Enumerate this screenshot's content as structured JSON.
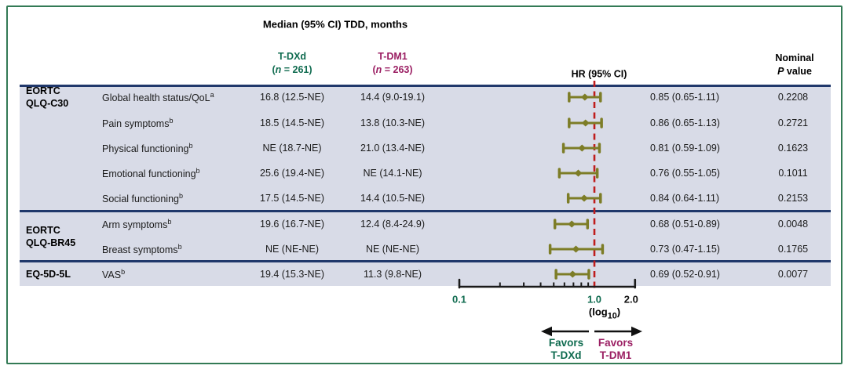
{
  "figure": {
    "title": "Median (95% CI) TDD, months",
    "col_tdxd": {
      "name": "T-DXd",
      "n_label": "(n = 261)"
    },
    "col_tdm1": {
      "name": "T-DM1",
      "n_label": "(n = 263)"
    },
    "col_hr": "HR (95% CI)",
    "col_p_line1": "Nominal",
    "col_p_line2": "P value"
  },
  "chart_data": {
    "type": "forest",
    "x_scale": "log10",
    "x_label": "(log10)",
    "reference_line": 1.0,
    "x_major_ticks": [
      {
        "value": 0.1,
        "label": "0.1",
        "color_key": "green"
      },
      {
        "value": 1.0,
        "label": "1.0",
        "color_key": "green"
      },
      {
        "value": 2.0,
        "label": "2.0",
        "color_key": "black"
      }
    ],
    "x_minor_ticks": [
      0.2,
      0.3,
      0.4,
      0.5,
      0.6,
      0.7,
      0.8,
      0.9
    ],
    "x_range": [
      0.1,
      2.0
    ],
    "groups": [
      {
        "lines": [
          "EORTC",
          "QLQ-C30"
        ],
        "row_start": 0,
        "row_end": 4
      },
      {
        "lines": [
          "EORTC",
          "QLQ-BR45"
        ],
        "row_start": 5,
        "row_end": 6
      },
      {
        "lines": [
          "EQ-5D-5L"
        ],
        "row_start": 7,
        "row_end": 7
      }
    ],
    "rows": [
      {
        "endpoint": "Global health status/QoL",
        "sup": "a",
        "tdxd": "16.8 (12.5-NE)",
        "tdm1": "14.4 (9.0-19.1)",
        "hr": 0.85,
        "ci_low": 0.65,
        "ci_high": 1.11,
        "hr_text": "0.85 (0.65-1.11)",
        "p_value": "0.2208"
      },
      {
        "endpoint": "Pain symptoms",
        "sup": "b",
        "tdxd": "18.5 (14.5-NE)",
        "tdm1": "13.8 (10.3-NE)",
        "hr": 0.86,
        "ci_low": 0.65,
        "ci_high": 1.13,
        "hr_text": "0.86 (0.65-1.13)",
        "p_value": "0.2721"
      },
      {
        "endpoint": "Physical functioning",
        "sup": "b",
        "tdxd": "NE (18.7-NE)",
        "tdm1": "21.0 (13.4-NE)",
        "hr": 0.81,
        "ci_low": 0.59,
        "ci_high": 1.09,
        "hr_text": "0.81 (0.59-1.09)",
        "p_value": "0.1623"
      },
      {
        "endpoint": "Emotional functioning",
        "sup": "b",
        "tdxd": "25.6 (19.4-NE)",
        "tdm1": "NE (14.1-NE)",
        "hr": 0.76,
        "ci_low": 0.55,
        "ci_high": 1.05,
        "hr_text": "0.76 (0.55-1.05)",
        "p_value": "0.1011"
      },
      {
        "endpoint": "Social functioning",
        "sup": "b",
        "tdxd": "17.5 (14.5-NE)",
        "tdm1": "14.4 (10.5-NE)",
        "hr": 0.84,
        "ci_low": 0.64,
        "ci_high": 1.11,
        "hr_text": "0.84 (0.64-1.11)",
        "p_value": "0.2153"
      },
      {
        "endpoint": "Arm symptoms",
        "sup": "b",
        "tdxd": "19.6 (16.7-NE)",
        "tdm1": "12.4 (8.4-24.9)",
        "hr": 0.68,
        "ci_low": 0.51,
        "ci_high": 0.89,
        "hr_text": "0.68 (0.51-0.89)",
        "p_value": "0.0048"
      },
      {
        "endpoint": "Breast symptoms",
        "sup": "b",
        "tdxd": "NE (NE-NE)",
        "tdm1": "NE (NE-NE)",
        "hr": 0.73,
        "ci_low": 0.47,
        "ci_high": 1.15,
        "hr_text": "0.73 (0.47-1.15)",
        "p_value": "0.1765"
      },
      {
        "endpoint": "VAS",
        "sup": "b",
        "tdxd": "19.4 (15.3-NE)",
        "tdm1": "11.3 (9.8-NE)",
        "hr": 0.69,
        "ci_low": 0.52,
        "ci_high": 0.91,
        "hr_text": "0.69 (0.52-0.91)",
        "p_value": "0.0077"
      }
    ]
  },
  "favors": {
    "left": {
      "line1": "Favors",
      "line2": "T-DXd"
    },
    "right": {
      "line1": "Favors",
      "line2": "T-DM1"
    }
  },
  "colors": {
    "green": "#0f6b4f",
    "magenta": "#9b1f63",
    "olive": "#7d7d27",
    "red": "#bf1d1d",
    "navy": "#20386b",
    "band_bg": "#d8dbe7",
    "border_green": "#337a55",
    "axis_black": "#1a1a1a"
  }
}
